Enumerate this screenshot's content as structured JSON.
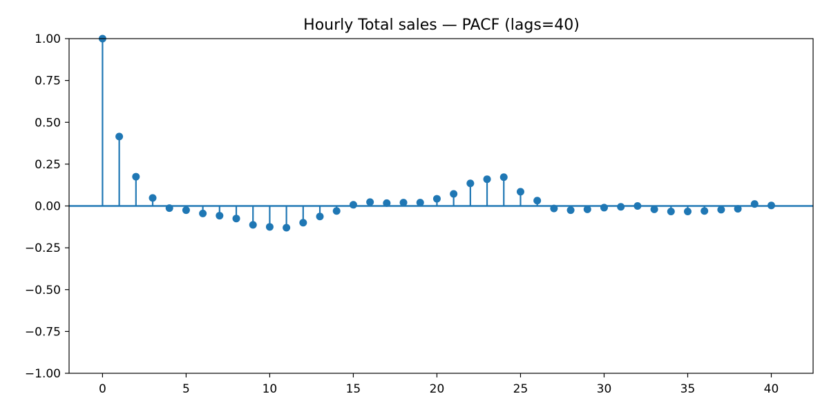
{
  "chart_data": {
    "type": "stem",
    "title": "Hourly Total sales — PACF (lags=40)",
    "xlabel": "",
    "ylabel": "",
    "xlim": [
      -2,
      42.5
    ],
    "ylim": [
      -1.0,
      1.0
    ],
    "xticks": [
      0,
      5,
      10,
      15,
      20,
      25,
      30,
      35,
      40
    ],
    "xtick_labels": [
      "0",
      "5",
      "10",
      "15",
      "20",
      "25",
      "30",
      "35",
      "40"
    ],
    "yticks": [
      1.0,
      0.75,
      0.5,
      0.25,
      0.0,
      -0.25,
      -0.5,
      -0.75,
      -1.0
    ],
    "ytick_labels": [
      "1.00",
      "0.75",
      "0.50",
      "0.25",
      "0.00",
      "−0.25",
      "−0.50",
      "−0.75",
      "−1.00"
    ],
    "grid": false,
    "color": "#1f77b4",
    "x": [
      0,
      1,
      2,
      3,
      4,
      5,
      6,
      7,
      8,
      9,
      10,
      11,
      12,
      13,
      14,
      15,
      16,
      17,
      18,
      19,
      20,
      21,
      22,
      23,
      24,
      25,
      26,
      27,
      28,
      29,
      30,
      31,
      32,
      33,
      34,
      35,
      36,
      37,
      38,
      39,
      40
    ],
    "values": [
      1.0,
      0.415,
      0.175,
      0.048,
      -0.013,
      -0.025,
      -0.045,
      -0.058,
      -0.075,
      -0.113,
      -0.125,
      -0.13,
      -0.1,
      -0.063,
      -0.03,
      0.007,
      0.023,
      0.017,
      0.02,
      0.02,
      0.043,
      0.072,
      0.135,
      0.16,
      0.172,
      0.085,
      0.032,
      -0.015,
      -0.025,
      -0.02,
      -0.01,
      -0.005,
      0.0,
      -0.02,
      -0.033,
      -0.033,
      -0.03,
      -0.022,
      -0.017,
      0.012,
      0.003
    ]
  }
}
